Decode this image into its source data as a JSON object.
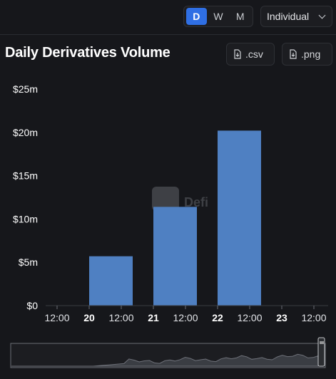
{
  "header": {
    "periods": [
      "D",
      "W",
      "M"
    ],
    "active_period": "D",
    "view_select": "Individual"
  },
  "title": "Daily Derivatives Volume",
  "downloads": {
    "csv": ".csv",
    "png": ".png"
  },
  "watermark": "Defi",
  "colors": {
    "bar": "#4f80c2",
    "accent": "#2f6fe4",
    "background": "#16171b"
  },
  "chart_data": {
    "type": "bar",
    "title": "Daily Derivatives Volume",
    "ylim": [
      0,
      25
    ],
    "y_ticks": [
      "$0",
      "$5m",
      "$10m",
      "$15m",
      "$20m",
      "$25m"
    ],
    "x_ticks": [
      {
        "label": "12:00",
        "bold": false
      },
      {
        "label": "20",
        "bold": true
      },
      {
        "label": "12:00",
        "bold": false
      },
      {
        "label": "21",
        "bold": true
      },
      {
        "label": "12:00",
        "bold": false
      },
      {
        "label": "22",
        "bold": true
      },
      {
        "label": "12:00",
        "bold": false
      },
      {
        "label": "23",
        "bold": true
      },
      {
        "label": "12:00",
        "bold": false
      }
    ],
    "categories": [
      "20",
      "21",
      "22"
    ],
    "values": [
      5.7,
      11.4,
      20.2
    ],
    "units": "USD millions",
    "grid": false
  }
}
